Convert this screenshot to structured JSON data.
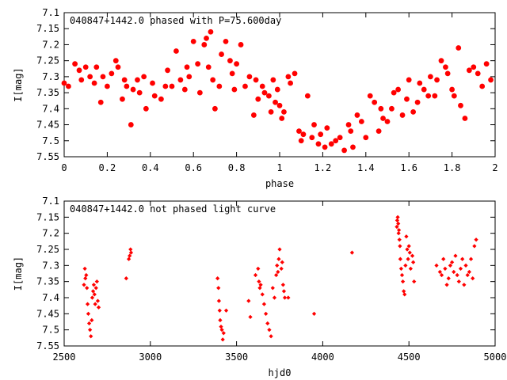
{
  "chart_data": [
    {
      "type": "scatter",
      "title": "040847+1442.0 phased with P=75.600day",
      "xlabel": "phase",
      "ylabel": "I[mag]",
      "xlim": [
        0,
        2
      ],
      "ylim": [
        7.55,
        7.1
      ],
      "y_inverted": true,
      "xticks": [
        0,
        0.2,
        0.4,
        0.6,
        0.8,
        1,
        1.2,
        1.4,
        1.6,
        1.8,
        2
      ],
      "yticks": [
        7.1,
        7.15,
        7.2,
        7.25,
        7.3,
        7.35,
        7.4,
        7.45,
        7.5,
        7.55
      ],
      "grid": false,
      "marker_color": "#ff0000",
      "series": [
        {
          "x": [
            0.0,
            0.02,
            0.05,
            0.07,
            0.08,
            0.1,
            0.12,
            0.14,
            0.15,
            0.17,
            0.18,
            0.2,
            0.22,
            0.24,
            0.25,
            0.27,
            0.28,
            0.29,
            0.31,
            0.32,
            0.34,
            0.35,
            0.37,
            0.38,
            0.41,
            0.42,
            0.45,
            0.47,
            0.48,
            0.5,
            0.52,
            0.54,
            0.56,
            0.57,
            0.58,
            0.6,
            0.62,
            0.63,
            0.65,
            0.66,
            0.67,
            0.68,
            0.69,
            0.7,
            0.72,
            0.73,
            0.75,
            0.77,
            0.78,
            0.79,
            0.8,
            0.82,
            0.84,
            0.86,
            0.88,
            0.89,
            0.9,
            0.92,
            0.93,
            0.95,
            0.96,
            0.97,
            0.98,
            0.99,
            1.0,
            1.01,
            1.02,
            1.04,
            1.05,
            1.07,
            1.09,
            1.1,
            1.11,
            1.13,
            1.15,
            1.16,
            1.18,
            1.19,
            1.21,
            1.22,
            1.24,
            1.26,
            1.28,
            1.3,
            1.32,
            1.33,
            1.34,
            1.36,
            1.38,
            1.4,
            1.42,
            1.44,
            1.46,
            1.47,
            1.48,
            1.5,
            1.52,
            1.53,
            1.55,
            1.57,
            1.59,
            1.6,
            1.62,
            1.64,
            1.65,
            1.67,
            1.69,
            1.7,
            1.72,
            1.73,
            1.75,
            1.77,
            1.78,
            1.8,
            1.81,
            1.83,
            1.84,
            1.86,
            1.88,
            1.9,
            1.92,
            1.94,
            1.96,
            1.98
          ],
          "y": [
            7.32,
            7.33,
            7.26,
            7.28,
            7.31,
            7.27,
            7.3,
            7.32,
            7.27,
            7.38,
            7.3,
            7.33,
            7.29,
            7.25,
            7.27,
            7.37,
            7.31,
            7.33,
            7.45,
            7.34,
            7.31,
            7.35,
            7.3,
            7.4,
            7.32,
            7.36,
            7.37,
            7.33,
            7.28,
            7.33,
            7.22,
            7.31,
            7.34,
            7.27,
            7.3,
            7.19,
            7.26,
            7.35,
            7.2,
            7.18,
            7.27,
            7.16,
            7.31,
            7.4,
            7.33,
            7.23,
            7.19,
            7.25,
            7.29,
            7.34,
            7.26,
            7.2,
            7.33,
            7.3,
            7.42,
            7.31,
            7.37,
            7.33,
            7.35,
            7.36,
            7.41,
            7.31,
            7.38,
            7.34,
            7.39,
            7.43,
            7.41,
            7.3,
            7.32,
            7.29,
            7.47,
            7.5,
            7.48,
            7.36,
            7.49,
            7.45,
            7.51,
            7.48,
            7.52,
            7.46,
            7.51,
            7.5,
            7.49,
            7.53,
            7.45,
            7.47,
            7.52,
            7.42,
            7.44,
            7.49,
            7.36,
            7.38,
            7.47,
            7.4,
            7.43,
            7.44,
            7.4,
            7.35,
            7.34,
            7.42,
            7.37,
            7.31,
            7.41,
            7.38,
            7.32,
            7.34,
            7.36,
            7.3,
            7.36,
            7.31,
            7.25,
            7.27,
            7.29,
            7.34,
            7.36,
            7.21,
            7.39,
            7.43,
            7.28,
            7.27,
            7.29,
            7.33,
            7.26,
            7.31
          ]
        }
      ]
    },
    {
      "type": "scatter",
      "title": "040847+1442.0 not phased light curve",
      "xlabel": "hjd0",
      "ylabel": "I[mag]",
      "xlim": [
        2500,
        5000
      ],
      "ylim": [
        7.55,
        7.1
      ],
      "y_inverted": true,
      "xticks": [
        2500,
        3000,
        3500,
        4000,
        4500,
        5000
      ],
      "yticks": [
        7.1,
        7.15,
        7.2,
        7.25,
        7.3,
        7.35,
        7.4,
        7.45,
        7.5,
        7.55
      ],
      "grid": false,
      "marker_color": "#ff0000",
      "series": [
        {
          "x": [
            2615,
            2620,
            2623,
            2628,
            2632,
            2636,
            2640,
            2645,
            2650,
            2655,
            2660,
            2663,
            2668,
            2672,
            2676,
            2680,
            2685,
            2690,
            2695,
            2700,
            2860,
            2875,
            2880,
            2885,
            2888,
            3390,
            3395,
            3398,
            3402,
            3405,
            3410,
            3415,
            3420,
            3425,
            3440,
            3570,
            3580,
            3610,
            3625,
            3630,
            3635,
            3640,
            3650,
            3660,
            3670,
            3680,
            3690,
            3700,
            3710,
            3720,
            3730,
            3735,
            3740,
            3745,
            3750,
            3760,
            3765,
            3770,
            3775,
            3780,
            3800,
            3950,
            4170,
            4430,
            4432,
            4435,
            4438,
            4440,
            4442,
            4445,
            4448,
            4450,
            4455,
            4460,
            4465,
            4470,
            4475,
            4480,
            4485,
            4490,
            4495,
            4500,
            4505,
            4510,
            4520,
            4525,
            4530,
            4660,
            4680,
            4690,
            4700,
            4710,
            4720,
            4730,
            4740,
            4750,
            4760,
            4770,
            4780,
            4790,
            4800,
            4810,
            4820,
            4830,
            4840,
            4850,
            4860,
            4870,
            4880,
            4890
          ],
          "y": [
            7.36,
            7.31,
            7.34,
            7.33,
            7.37,
            7.42,
            7.45,
            7.48,
            7.5,
            7.52,
            7.47,
            7.4,
            7.38,
            7.36,
            7.39,
            7.42,
            7.37,
            7.35,
            7.41,
            7.43,
            7.34,
            7.28,
            7.27,
            7.25,
            7.26,
            7.34,
            7.37,
            7.41,
            7.44,
            7.47,
            7.49,
            7.5,
            7.53,
            7.51,
            7.44,
            7.41,
            7.46,
            7.33,
            7.31,
            7.35,
            7.37,
            7.36,
            7.39,
            7.42,
            7.45,
            7.48,
            7.5,
            7.52,
            7.37,
            7.4,
            7.33,
            7.3,
            7.32,
            7.28,
            7.25,
            7.31,
            7.29,
            7.36,
            7.38,
            7.4,
            7.4,
            7.45,
            7.26,
            7.18,
            7.16,
            7.15,
            7.17,
            7.2,
            7.19,
            7.22,
            7.24,
            7.28,
            7.31,
            7.33,
            7.35,
            7.38,
            7.39,
            7.3,
            7.21,
            7.25,
            7.28,
            7.24,
            7.26,
            7.31,
            7.27,
            7.29,
            7.35,
            7.3,
            7.32,
            7.33,
            7.28,
            7.31,
            7.36,
            7.34,
            7.3,
            7.29,
            7.32,
            7.27,
            7.33,
            7.35,
            7.31,
            7.28,
            7.36,
            7.3,
            7.33,
            7.32,
            7.28,
            7.34,
            7.24,
            7.22
          ]
        }
      ]
    }
  ]
}
